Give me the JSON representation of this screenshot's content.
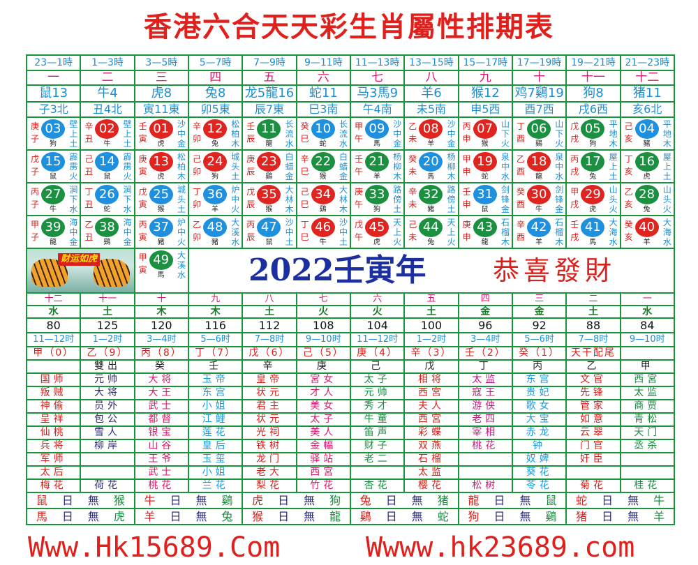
{
  "title": "香港六合天天彩生肖屬性排期表",
  "colors": {
    "red": "#e0241f",
    "blue": "#1e90dd",
    "green": "#1a9040",
    "border": "#17953a"
  },
  "hours": [
    "23—1時",
    "1—3時",
    "3—5時",
    "5—7時",
    "7—9時",
    "9—11時",
    "11—13時",
    "13—15時",
    "15—17時",
    "17—19時",
    "19—21時",
    "21—23時"
  ],
  "order": [
    "一",
    "二",
    "三",
    "四",
    "五",
    "六",
    "七",
    "八",
    "九",
    "十",
    "十一",
    "十二"
  ],
  "zodiacs": [
    "鼠13",
    "牛4",
    "虎8",
    "兔8",
    "龙5龍16",
    "蛇11",
    "马3馬9",
    "羊6",
    "猴12",
    "鸡7鷄19",
    "狗8",
    "猪11"
  ],
  "branches": [
    "子3北",
    "丑4北",
    "寅11東",
    "卯5東",
    "辰7東",
    "巳3南",
    "午4南",
    "未5南",
    "申5西",
    "酉7西",
    "戌6西",
    "亥6北"
  ],
  "grid": [
    [
      {
        "sb": "庚子",
        "n": "03",
        "c": "blue",
        "a": "狗",
        "ny": "壁上土"
      },
      {
        "sb": "辛丑",
        "n": "02",
        "c": "red",
        "a": "牛",
        "ny": "壁上土"
      },
      {
        "sb": "壬寅",
        "n": "01",
        "c": "red",
        "a": "虎",
        "ny": "沙中金"
      },
      {
        "sb": "辛卯",
        "n": "12",
        "c": "red",
        "a": "兔",
        "ny": "松柏木"
      },
      {
        "sb": "壬辰",
        "n": "11",
        "c": "green",
        "a": "龍",
        "ny": "长流水"
      },
      {
        "sb": "癸巳",
        "n": "10",
        "c": "blue",
        "a": "蛇",
        "ny": "长流水"
      },
      {
        "sb": "甲午",
        "n": "09",
        "c": "blue",
        "a": "馬",
        "ny": "沙中金"
      },
      {
        "sb": "乙未",
        "n": "08",
        "c": "red",
        "a": "羊",
        "ny": "沙中金"
      },
      {
        "sb": "丙申",
        "n": "07",
        "c": "red",
        "a": "猴",
        "ny": "山下火"
      },
      {
        "sb": "丁酉",
        "n": "06",
        "c": "green",
        "a": "鷄",
        "ny": "山下火"
      },
      {
        "sb": "戊戌",
        "n": "05",
        "c": "green",
        "a": "狗",
        "ny": "平地木"
      },
      {
        "sb": "己亥",
        "n": "04",
        "c": "blue",
        "a": "豬",
        "ny": "平地木"
      }
    ],
    [
      {
        "sb": "戊子",
        "n": "15",
        "c": "blue",
        "a": "鼠",
        "ny": "霹雳火"
      },
      {
        "sb": "己丑",
        "n": "14",
        "c": "blue",
        "a": "鼠",
        "ny": "霹雳火"
      },
      {
        "sb": "庚寅",
        "n": "13",
        "c": "red",
        "a": "虎",
        "ny": "松柏木"
      },
      {
        "sb": "己卯",
        "n": "24",
        "c": "red",
        "a": "狗",
        "ny": "城头土"
      },
      {
        "sb": "庚辰",
        "n": "23",
        "c": "red",
        "a": "鷄",
        "ny": "白蜡金"
      },
      {
        "sb": "辛巳",
        "n": "22",
        "c": "green",
        "a": "猴",
        "ny": "白蜡金"
      },
      {
        "sb": "壬午",
        "n": "21",
        "c": "green",
        "a": "羊",
        "ny": "杨柳木"
      },
      {
        "sb": "癸未",
        "n": "20",
        "c": "blue",
        "a": "馬",
        "ny": "杨柳木"
      },
      {
        "sb": "甲申",
        "n": "19",
        "c": "red",
        "a": "蛇",
        "ny": "泉中水"
      },
      {
        "sb": "乙酉",
        "n": "18",
        "c": "red",
        "a": "龍",
        "ny": "泉中水"
      },
      {
        "sb": "丙戌",
        "n": "17",
        "c": "green",
        "a": "兔",
        "ny": "屋上土"
      },
      {
        "sb": "丁亥",
        "n": "16",
        "c": "green",
        "a": "虎",
        "ny": "屋上土"
      }
    ],
    [
      {
        "sb": "丙子",
        "n": "27",
        "c": "green",
        "a": "牛",
        "ny": "涧下水"
      },
      {
        "sb": "丁丑",
        "n": "26",
        "c": "blue",
        "a": "蛇",
        "ny": "涧下水"
      },
      {
        "sb": "戊寅",
        "n": "25",
        "c": "blue",
        "a": "猴",
        "ny": "城头土"
      },
      {
        "sb": "丁卯",
        "n": "36",
        "c": "blue",
        "a": "羊",
        "ny": "炉中火"
      },
      {
        "sb": "戊辰",
        "n": "35",
        "c": "red",
        "a": "猴",
        "ny": "大林木"
      },
      {
        "sb": "己巳",
        "n": "34",
        "c": "red",
        "a": "鷄",
        "ny": "大林木"
      },
      {
        "sb": "庚午",
        "n": "33",
        "c": "green",
        "a": "狗",
        "ny": "路傍土"
      },
      {
        "sb": "辛未",
        "n": "32",
        "c": "green",
        "a": "豬",
        "ny": "路傍土"
      },
      {
        "sb": "壬申",
        "n": "31",
        "c": "blue",
        "a": "鼠",
        "ny": "剑锋金"
      },
      {
        "sb": "癸酉",
        "n": "30",
        "c": "red",
        "a": "牛",
        "ny": "剑锋金"
      },
      {
        "sb": "甲戌",
        "n": "29",
        "c": "red",
        "a": "虎",
        "ny": "山头火"
      },
      {
        "sb": "乙亥",
        "n": "28",
        "c": "green",
        "a": "兔",
        "ny": "山头火"
      }
    ],
    [
      {
        "sb": "甲子",
        "n": "39",
        "c": "green",
        "a": "龍",
        "ny": "海中金"
      },
      {
        "sb": "乙丑",
        "n": "38",
        "c": "green",
        "a": "鷄",
        "ny": "海中金"
      },
      {
        "sb": "丙寅",
        "n": "37",
        "c": "blue",
        "a": "豬",
        "ny": "炉中火"
      },
      {
        "sb": "乙卯",
        "n": "48",
        "c": "blue",
        "a": "豬",
        "ny": "大溪水"
      },
      {
        "sb": "丙辰",
        "n": "47",
        "c": "blue",
        "a": "鼠",
        "ny": "沙中土"
      },
      {
        "sb": "丁巳",
        "n": "46",
        "c": "red",
        "a": "牛",
        "ny": "沙中土"
      },
      {
        "sb": "戊午",
        "n": "45",
        "c": "red",
        "a": "虎",
        "ny": "天上火"
      },
      {
        "sb": "己未",
        "n": "44",
        "c": "green",
        "a": "兔",
        "ny": "天上火"
      },
      {
        "sb": "庚申",
        "n": "43",
        "c": "green",
        "a": "龍",
        "ny": "石榴木"
      },
      {
        "sb": "辛酉",
        "n": "42",
        "c": "blue",
        "a": "羊",
        "ny": "石榴木"
      },
      {
        "sb": "壬戌",
        "n": "41",
        "c": "blue",
        "a": "馬",
        "ny": "大海水"
      },
      {
        "sb": "癸亥",
        "n": "40",
        "c": "red",
        "a": "羊",
        "ny": "大海水"
      }
    ]
  ],
  "extra_cell": {
    "sb": "甲寅",
    "n": "49",
    "c": "green",
    "a": "馬",
    "ny": "大溪水"
  },
  "banner": {
    "tiger_caption": "财运如虎",
    "year": "2022壬寅年",
    "greeting": "恭喜發財"
  },
  "lower": {
    "order": [
      "十二",
      "十一",
      "十",
      "九",
      "八",
      "七",
      "六",
      "五",
      "四",
      "三",
      "二",
      "一"
    ],
    "elements": [
      "水",
      "土",
      "木",
      "木",
      "土",
      "火",
      "火",
      "土",
      "金",
      "金",
      "土",
      "水"
    ],
    "values": [
      "80",
      "125",
      "120",
      "116",
      "112",
      "108",
      "104",
      "100",
      "96",
      "92",
      "88",
      "84"
    ],
    "hours": [
      "11—12时",
      "1—2时",
      "3—4时",
      "5—6时",
      "7—8时",
      "9—10时",
      "11—12时",
      "1—2时",
      "3—4时",
      "5—6时",
      "7—8时",
      "9—10时"
    ],
    "stems": [
      "甲（0）",
      "乙（9）",
      "丙（8）",
      "丁（7）",
      "戊（6）",
      "己（5）",
      "庚（4）",
      "辛（3）",
      "壬（2）",
      "癸（1）",
      "天干配尾",
      ""
    ],
    "column_colors": [
      "#d8201c",
      "#2a2a6a",
      "#d81a6a",
      "#1b9ad8",
      "#d8201c",
      "#d81a6a",
      "#1a8a40",
      "#d8201c",
      "#c81a7a",
      "#1b9ad8",
      "#d8201c",
      "#1a8a40"
    ],
    "rows": [
      [
        "",
        "雙出",
        "癸",
        "壬",
        "辛",
        "庚",
        "己",
        "戊",
        "丁",
        "丙",
        "乙",
        "甲"
      ],
      [
        "国师",
        "元帅",
        "大将",
        "玉帝",
        "皇帝",
        "宮女",
        "太子",
        "相将",
        "太监",
        "东宫",
        "文官",
        "西宮"
      ],
      [
        "叛贼",
        "大将",
        "大王",
        "东宫",
        "状元",
        "才人",
        "元帅",
        "西宮",
        "寇王",
        "贵妃",
        "先锋",
        "太监"
      ],
      [
        "神偷",
        "员外",
        "武士",
        "小姐",
        "君主",
        "美女",
        "秀才",
        "夫人",
        "游侠",
        "歌女",
        "管家",
        "商贾"
      ],
      [
        "呈祥",
        "包公",
        "都督",
        "江鲤",
        "状元",
        "太子",
        "牛童",
        "西宮",
        "老四",
        "大宝",
        "如意",
        "青松"
      ],
      [
        "仙桃",
        "雪人",
        "银宝",
        "莲花",
        "光祠",
        "美人",
        "笛声",
        "彩蝶",
        "宰相",
        "赤龙",
        "云翠",
        "天门"
      ],
      [
        "兵将",
        "柳岸",
        "山谷",
        "皇后",
        "铁树",
        "金幅",
        "财子",
        "双燕",
        "桃花",
        "钟",
        "门官",
        "丞杀"
      ],
      [
        "军师",
        "",
        "王爷",
        "玉玺",
        "龙门",
        "驿站",
        "老二",
        "石榴",
        "",
        "奴婢",
        "奸臣",
        ""
      ],
      [
        "太后",
        "",
        "武士",
        "小姐",
        "老大",
        "西宮",
        "",
        "太监",
        "",
        "葵花",
        "",
        ""
      ],
      [
        "梅花",
        "荷花",
        "桃花",
        "兰花",
        "梨花",
        "竹花",
        "杏花",
        "樱花",
        "松树",
        "苓花",
        "菊花",
        "桂花"
      ]
    ],
    "clash_rows": [
      [
        [
          "鼠",
          "日",
          "無",
          "猴"
        ],
        [
          "牛",
          "日",
          "無",
          "鷄"
        ],
        [
          "虎",
          "日",
          "無",
          "狗"
        ],
        [
          "兔",
          "日",
          "無",
          "猪"
        ],
        [
          "龍",
          "日",
          "無",
          "鼠"
        ],
        [
          "蛇",
          "日",
          "無",
          "牛"
        ]
      ],
      [
        [
          "馬",
          "日",
          "無",
          "虎"
        ],
        [
          "羊",
          "日",
          "無",
          "兔"
        ],
        [
          "猴",
          "日",
          "無",
          "龍"
        ],
        [
          "鷄",
          "日",
          "無",
          "蛇"
        ],
        [
          "狗",
          "日",
          "無",
          "鷄"
        ],
        [
          "猪",
          "日",
          "無",
          "羊"
        ]
      ]
    ]
  },
  "footer": {
    "left": "Www.Hk15689.Com",
    "right": "Wwww.hk23689.com"
  }
}
